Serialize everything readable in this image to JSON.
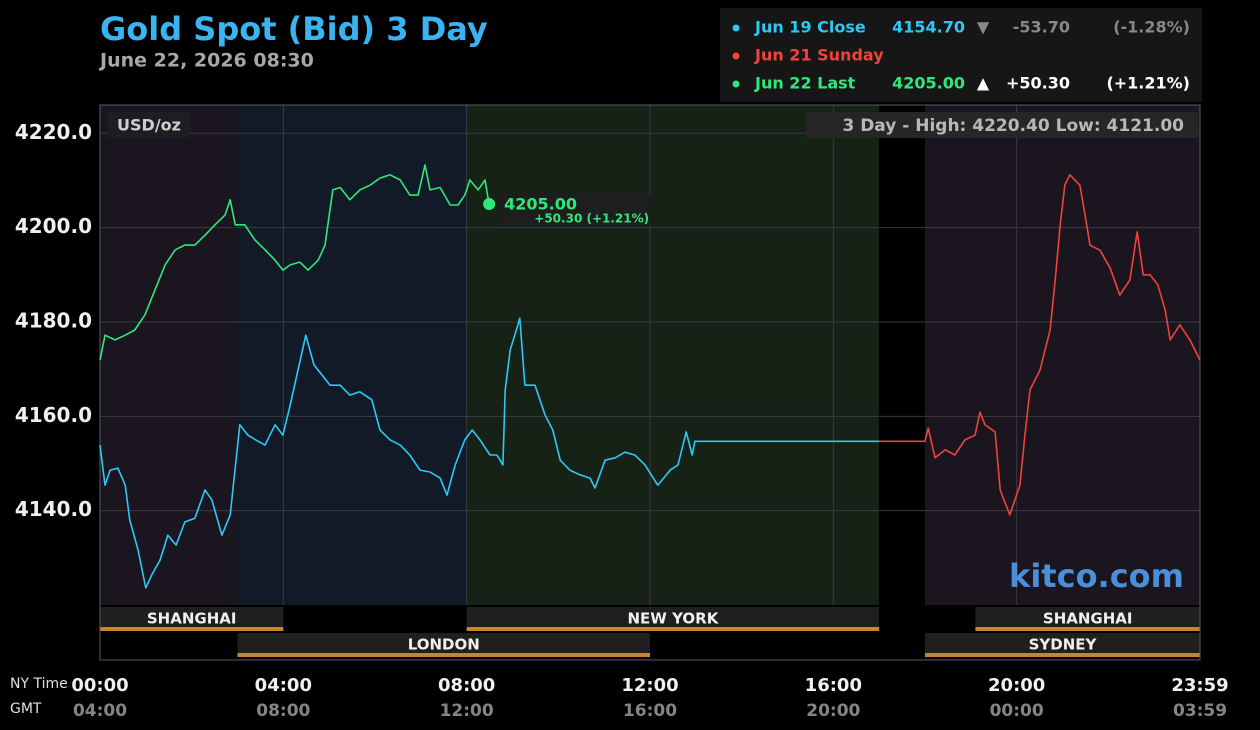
{
  "chart_data": {
    "type": "line",
    "title": "Gold Spot (Bid) 3 Day",
    "subtitle": "June 22, 2026 08:30",
    "unit_label": "USD/oz",
    "range_note": "3 Day - High: 4220.40  Low: 4121.00",
    "watermark": "kitco.com",
    "x_axis_label": "NY Time",
    "x2_axis_label": "GMT",
    "xlim": [
      0,
      24
    ],
    "xticks": [
      {
        "value": 0,
        "label": "00:00"
      },
      {
        "value": 4,
        "label": "04:00"
      },
      {
        "value": 8,
        "label": "08:00"
      },
      {
        "value": 12,
        "label": "12:00"
      },
      {
        "value": 16,
        "label": "16:00"
      },
      {
        "value": 20,
        "label": "20:00"
      },
      {
        "value": 24,
        "label": "23:59"
      }
    ],
    "x2ticks": [
      "04:00",
      "08:00",
      "12:00",
      "16:00",
      "20:00",
      "00:00",
      "03:59"
    ],
    "ylim": [
      4120,
      4226
    ],
    "yticks": [
      {
        "value": 4140,
        "label": "4140.0"
      },
      {
        "value": 4160,
        "label": "4160.0"
      },
      {
        "value": 4180,
        "label": "4180.0"
      },
      {
        "value": 4200,
        "label": "4200.0"
      },
      {
        "value": 4220,
        "label": "4220.0"
      }
    ],
    "grid": true,
    "shading": [
      {
        "start": 0,
        "end": 3,
        "color": "#1b1520"
      },
      {
        "start": 3,
        "end": 8,
        "color": "#121a28"
      },
      {
        "start": 8,
        "end": 17,
        "color": "#172217"
      },
      {
        "start": 17,
        "end": 18,
        "color": "#000000"
      },
      {
        "start": 18,
        "end": 24,
        "color": "#1b1520"
      }
    ],
    "sessions_top": [
      {
        "name": "SHANGHAI",
        "start": 0,
        "end": 4
      },
      {
        "name": "NEW YORK",
        "start": 8,
        "end": 17
      },
      {
        "name": "SHANGHAI",
        "start": 19.1,
        "end": 24
      }
    ],
    "sessions_bottom": [
      {
        "name": "LONDON",
        "start": 3,
        "end": 12
      },
      {
        "name": "SYDNEY",
        "start": 18,
        "end": 24
      }
    ],
    "series": [
      {
        "name": "Jun 19 Close",
        "color": "#2ec8f5",
        "summary": {
          "price": "4154.70",
          "arrow": "▼",
          "change": "-53.70",
          "pct": "(-1.28%)"
        },
        "x": [
          0,
          0.11,
          0.22,
          0.39,
          0.55,
          0.65,
          0.83,
          1.0,
          1.13,
          1.31,
          1.48,
          1.66,
          1.85,
          2.07,
          2.29,
          2.44,
          2.66,
          2.84,
          3.05,
          3.23,
          3.4,
          3.6,
          3.82,
          3.99,
          4.15,
          4.32,
          4.49,
          4.67,
          4.84,
          5.02,
          5.24,
          5.45,
          5.67,
          5.93,
          6.11,
          6.33,
          6.55,
          6.76,
          6.98,
          7.2,
          7.42,
          7.57,
          7.75,
          7.96,
          8.12,
          8.29,
          8.51,
          8.66,
          8.79,
          8.84,
          8.95,
          9.05,
          9.16,
          9.27,
          9.49,
          9.71,
          9.88,
          10.04,
          10.25,
          10.47,
          10.69,
          10.8,
          11.02,
          11.24,
          11.45,
          11.67,
          11.89,
          12.17,
          12.44,
          12.61,
          12.79,
          12.92,
          12.98,
          17
        ],
        "values": [
          4153.9,
          4145.4,
          4148.6,
          4149.0,
          4145.4,
          4138.0,
          4131.7,
          4123.6,
          4126.4,
          4129.5,
          4134.8,
          4132.7,
          4137.6,
          4138.4,
          4144.4,
          4142.3,
          4134.8,
          4139.1,
          4158.2,
          4156.0,
          4155.0,
          4153.9,
          4158.2,
          4156.0,
          4162.4,
          4169.8,
          4177.2,
          4170.9,
          4168.8,
          4166.6,
          4166.6,
          4164.5,
          4165.2,
          4163.5,
          4157.1,
          4155.0,
          4153.9,
          4151.8,
          4148.6,
          4148.2,
          4146.9,
          4143.3,
          4149.7,
          4155.0,
          4157.1,
          4155.0,
          4151.8,
          4151.8,
          4149.7,
          4165.6,
          4174.1,
          4177.2,
          4180.8,
          4166.6,
          4166.6,
          4160.3,
          4157.1,
          4150.7,
          4148.6,
          4147.6,
          4146.9,
          4144.8,
          4150.7,
          4151.2,
          4152.4,
          4151.8,
          4149.7,
          4145.4,
          4148.6,
          4149.7,
          4156.7,
          4151.8,
          4154.7,
          4154.7
        ]
      },
      {
        "name": "Jun 21 Sunday",
        "color": "#f0433a",
        "x": [
          17,
          18,
          18.07,
          18.22,
          18.44,
          18.65,
          18.87,
          19.09,
          19.2,
          19.31,
          19.53,
          19.64,
          19.85,
          20.07,
          20.18,
          20.29,
          20.51,
          20.73,
          20.84,
          20.95,
          21.05,
          21.16,
          21.38,
          21.49,
          21.6,
          21.82,
          22.04,
          22.25,
          22.47,
          22.63,
          22.76,
          22.91,
          23.08,
          23.24,
          23.35,
          23.56,
          23.78,
          24
        ],
        "values": [
          4154.7,
          4154.7,
          4157.5,
          4151.2,
          4152.9,
          4151.8,
          4155.0,
          4156.0,
          4160.9,
          4158.2,
          4156.7,
          4144.4,
          4139.1,
          4145.4,
          4156.0,
          4165.6,
          4169.8,
          4178.3,
          4188.9,
          4200.6,
          4209.0,
          4211.2,
          4209.0,
          4202.7,
          4196.3,
          4195.2,
          4191.4,
          4185.7,
          4188.9,
          4199.1,
          4190.0,
          4190.0,
          4187.9,
          4182.5,
          4176.2,
          4179.4,
          4176.2,
          4171.9
        ]
      },
      {
        "name": "Jun 22 Last",
        "color": "#2ee87a",
        "summary": {
          "price": "4205.00",
          "arrow": "▲",
          "change": "+50.30",
          "pct": "(+1.21%)"
        },
        "last_label": {
          "price": "4205.00",
          "change": "+50.30 (+1.21%)"
        },
        "x": [
          0,
          0.11,
          0.33,
          0.55,
          0.76,
          0.98,
          1.2,
          1.42,
          1.64,
          1.85,
          2.07,
          2.29,
          2.51,
          2.73,
          2.84,
          2.95,
          3.16,
          3.38,
          3.6,
          3.82,
          3.99,
          4.15,
          4.36,
          4.54,
          4.76,
          4.91,
          5.08,
          5.24,
          5.45,
          5.67,
          5.89,
          6.11,
          6.33,
          6.55,
          6.76,
          6.94,
          7.09,
          7.2,
          7.42,
          7.64,
          7.81,
          7.96,
          8.07,
          8.25,
          8.4,
          8.49
        ],
        "values": [
          4171.9,
          4177.2,
          4176.2,
          4177.2,
          4178.3,
          4181.5,
          4186.8,
          4192.1,
          4195.3,
          4196.3,
          4196.3,
          4198.4,
          4200.6,
          4202.7,
          4205.9,
          4200.6,
          4200.6,
          4197.4,
          4195.3,
          4193.1,
          4191.0,
          4192.1,
          4192.7,
          4191.0,
          4193.1,
          4196.3,
          4208.0,
          4208.5,
          4205.9,
          4208.0,
          4209.0,
          4210.5,
          4211.2,
          4210.1,
          4206.9,
          4206.9,
          4213.3,
          4208.0,
          4208.5,
          4204.8,
          4204.8,
          4206.9,
          4210.1,
          4208.0,
          4210.1,
          4205.0
        ]
      }
    ]
  }
}
